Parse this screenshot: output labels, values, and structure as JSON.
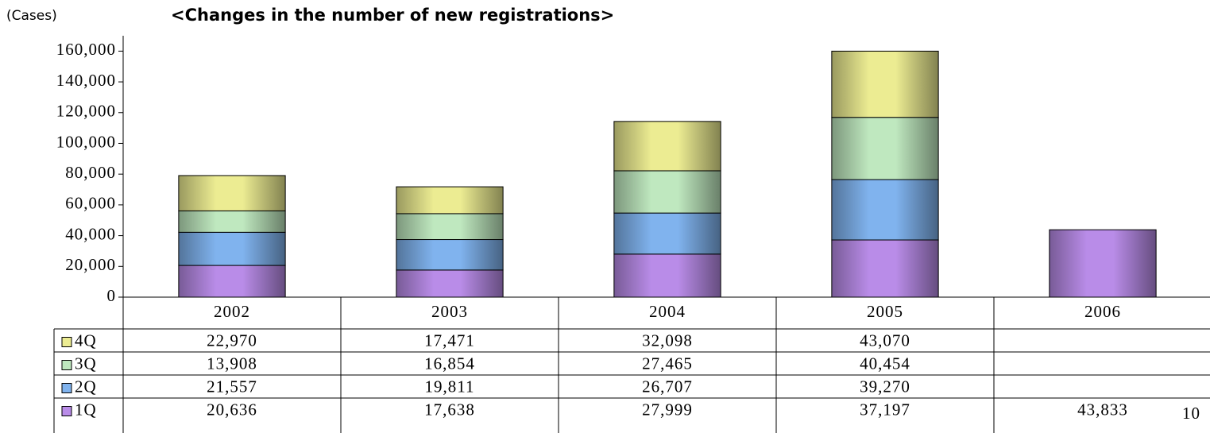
{
  "chart_data": {
    "type": "stacked-bar",
    "title": "<Changes in the number of new registrations>",
    "y_axis_label": "(Cases)",
    "categories": [
      "2002",
      "2003",
      "2004",
      "2005",
      "2006"
    ],
    "series": [
      {
        "name": "1Q",
        "color": "#b98ce8",
        "values": [
          20636,
          17638,
          27999,
          37197,
          43833
        ],
        "value_labels": [
          "20,636",
          "17,638",
          "27,999",
          "37,197",
          "43,833"
        ]
      },
      {
        "name": "2Q",
        "color": "#80b3ee",
        "values": [
          21557,
          19811,
          26707,
          39270,
          null
        ],
        "value_labels": [
          "21,557",
          "19,811",
          "26,707",
          "39,270",
          null
        ]
      },
      {
        "name": "3Q",
        "color": "#bfe8bf",
        "values": [
          13908,
          16854,
          27465,
          40454,
          null
        ],
        "value_labels": [
          "13,908",
          "16,854",
          "27,465",
          "40,454",
          null
        ]
      },
      {
        "name": "4Q",
        "color": "#ecec92",
        "values": [
          22970,
          17471,
          32098,
          43070,
          null
        ],
        "value_labels": [
          "22,970",
          "17,471",
          "32,098",
          "43,070",
          null
        ]
      }
    ],
    "ylim": [
      0,
      170000
    ],
    "yticks": [
      0,
      {
        "value": 20000,
        "label": "20,000"
      },
      {
        "value": 40000,
        "label": "40,000"
      },
      {
        "value": 60000,
        "label": "60,000"
      },
      {
        "value": 80000,
        "label": "80,000"
      },
      {
        "value": 100000,
        "label": "100,000"
      },
      {
        "value": 120000,
        "label": "120,000"
      },
      {
        "value": 140000,
        "label": "140,000"
      },
      {
        "value": 160000,
        "label": "160,000"
      }
    ],
    "grid": false,
    "page_number": "10"
  }
}
